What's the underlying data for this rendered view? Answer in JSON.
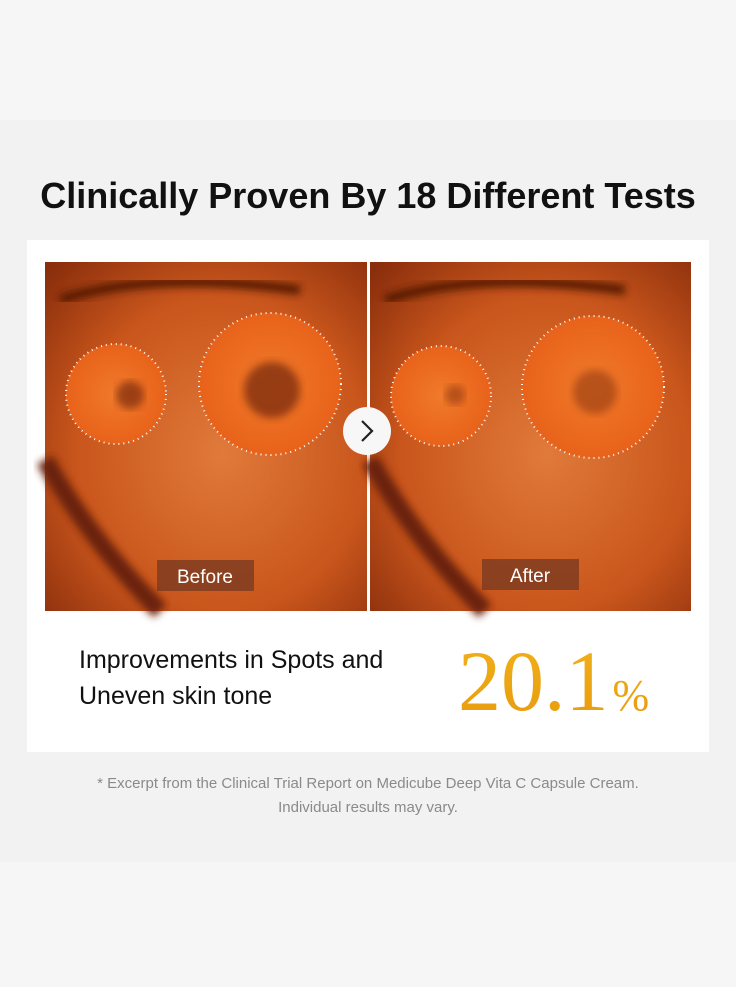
{
  "header": {
    "title": "Clinically Proven By 18 Different Tests"
  },
  "comparison": {
    "before_label": "Before",
    "after_label": "After"
  },
  "result": {
    "description": [
      "Improvements in Spots and",
      "Uneven skin tone"
    ],
    "value": 20.1,
    "unit": "%"
  },
  "footnote": [
    "* Excerpt from the Clinical Trial Report on Medicube Deep Vita C Capsule Cream.",
    "Individual results may vary."
  ]
}
